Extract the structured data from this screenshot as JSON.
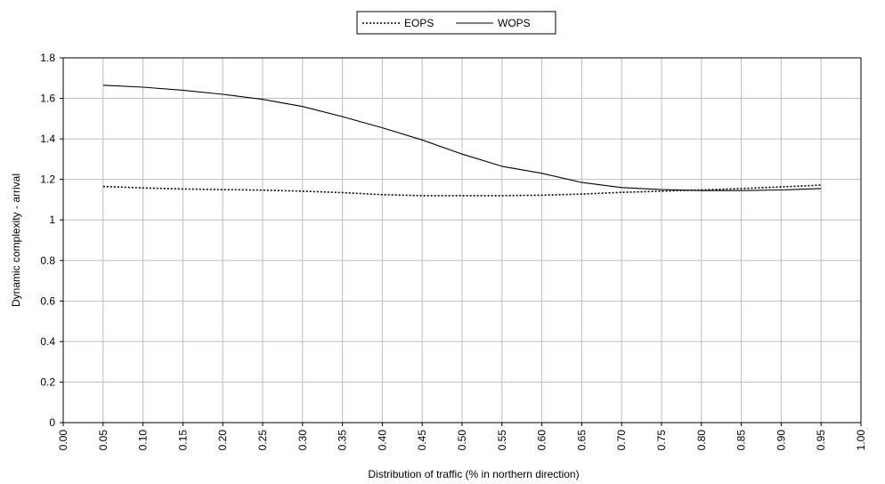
{
  "chart_data": {
    "type": "line",
    "xlabel": "Distribution of traffic (% in northern direction)",
    "ylabel": "Dynamic complexity - arrival",
    "x_ticks": [
      "0.00",
      "0.05",
      "0.10",
      "0.15",
      "0.20",
      "0.25",
      "0.30",
      "0.35",
      "0.40",
      "0.45",
      "0.50",
      "0.55",
      "0.60",
      "0.65",
      "0.70",
      "0.75",
      "0.80",
      "0.85",
      "0.90",
      "0.95",
      "1.00"
    ],
    "y_ticks": [
      "0",
      "0.2",
      "0.4",
      "0.6",
      "0.8",
      "1",
      "1.2",
      "1.4",
      "1.6",
      "1.8"
    ],
    "xlim": [
      0,
      1
    ],
    "ylim": [
      0,
      1.8
    ],
    "grid": true,
    "legend_position": "top-center",
    "x": [
      0.05,
      0.1,
      0.15,
      0.2,
      0.25,
      0.3,
      0.35,
      0.4,
      0.45,
      0.5,
      0.55,
      0.6,
      0.65,
      0.7,
      0.75,
      0.8,
      0.85,
      0.9,
      0.95
    ],
    "series": [
      {
        "name": "EOPS",
        "style": "dotted",
        "color": "#000000",
        "values": [
          1.165,
          1.158,
          1.153,
          1.15,
          1.147,
          1.142,
          1.135,
          1.125,
          1.12,
          1.12,
          1.12,
          1.122,
          1.128,
          1.136,
          1.142,
          1.148,
          1.155,
          1.163,
          1.172
        ]
      },
      {
        "name": "WOPS",
        "style": "solid",
        "color": "#000000",
        "values": [
          1.665,
          1.655,
          1.64,
          1.62,
          1.595,
          1.56,
          1.51,
          1.455,
          1.395,
          1.325,
          1.265,
          1.23,
          1.185,
          1.16,
          1.15,
          1.145,
          1.145,
          1.148,
          1.155
        ]
      }
    ]
  }
}
